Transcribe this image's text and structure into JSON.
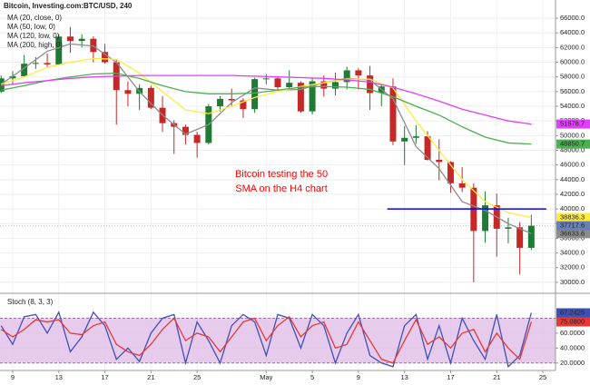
{
  "chart_data": [
    {
      "type": "candlestick",
      "title": "Bitcoin, Investing.com:BTC/USD, 240",
      "annotation": [
        "Bitcoin testing the 50",
        "SMA on the H4 chart"
      ],
      "annotation_color": "#ff0000",
      "x": [
        -1,
        0,
        1,
        2,
        3,
        4,
        5,
        6,
        7,
        8,
        9,
        10,
        11,
        12,
        13,
        14,
        15,
        16,
        17,
        18,
        19,
        20,
        21,
        22,
        23,
        24,
        25,
        26,
        27,
        28,
        29,
        30,
        31,
        32,
        33,
        34,
        35,
        36,
        37,
        38,
        39,
        40,
        41,
        42,
        43,
        44,
        45
      ],
      "open": [
        56000,
        57800,
        58100,
        59800,
        59900,
        59700,
        63500,
        62900,
        63200,
        61400,
        60000,
        56200,
        55700,
        56500,
        53800,
        51700,
        51200,
        50100,
        49000,
        54000,
        55000,
        54800,
        53600,
        57700,
        57800,
        56600,
        57200,
        53300,
        57400,
        56400,
        57300,
        58900,
        58200,
        55800,
        56700,
        49200,
        49700,
        49900,
        46700,
        46400,
        43500,
        42900,
        37000,
        40500,
        37300,
        37500,
        34700
      ],
      "high": [
        58200,
        58800,
        61000,
        60700,
        61200,
        63800,
        64800,
        63800,
        63500,
        62500,
        60400,
        57400,
        57000,
        56800,
        55400,
        52100,
        51500,
        50500,
        54300,
        55400,
        56400,
        55100,
        57900,
        58400,
        57900,
        58900,
        57400,
        57800,
        58200,
        58600,
        59400,
        59200,
        59500,
        57000,
        57800,
        51300,
        51400,
        50600,
        49500,
        46500,
        45700,
        43500,
        42400,
        42100,
        38800,
        38200,
        39200
      ],
      "low": [
        55800,
        56900,
        57900,
        59100,
        59300,
        59700,
        61300,
        62000,
        60000,
        59800,
        51500,
        54000,
        53500,
        53600,
        50500,
        47500,
        48800,
        47000,
        48800,
        53300,
        53900,
        52400,
        53100,
        57000,
        56100,
        56500,
        53100,
        52900,
        55300,
        55500,
        56300,
        56300,
        53500,
        54000,
        48700,
        46000,
        48900,
        46600,
        43900,
        42200,
        42300,
        30000,
        35400,
        33500,
        35300,
        31100,
        34400
      ],
      "close": [
        57800,
        58100,
        59800,
        59900,
        59700,
        63500,
        62900,
        63200,
        61400,
        60000,
        56200,
        55700,
        56500,
        53800,
        51700,
        51200,
        50100,
        49000,
        54000,
        55000,
        54800,
        53600,
        57700,
        57800,
        56600,
        57200,
        53300,
        57400,
        56400,
        57300,
        58900,
        58200,
        55800,
        56700,
        49200,
        49700,
        49900,
        46700,
        46400,
        43500,
        42900,
        37000,
        40500,
        37300,
        37500,
        34700,
        37717.6
      ],
      "up_color": "#1e7b34",
      "down_color": "#c62828",
      "price_color": "#6a7fb5",
      "series": [
        {
          "name": "MA (20, close, 0)",
          "color": "#8c8c8c",
          "x": [
            -1,
            1,
            3,
            5,
            7,
            9,
            11,
            13,
            15,
            17,
            19,
            21,
            23,
            25,
            27,
            29,
            31,
            33,
            35,
            37,
            39,
            41,
            43,
            45
          ],
          "values": [
            57000,
            59200,
            61500,
            62500,
            62200,
            60000,
            56000,
            52800,
            50200,
            51500,
            54500,
            56500,
            56200,
            56300,
            57200,
            57800,
            57600,
            55000,
            48500,
            45500,
            41000,
            39800,
            38000,
            36633.6
          ]
        },
        {
          "name": "MA (50, low, 0)",
          "color": "#ffeb3b",
          "x": [
            -1,
            1,
            3,
            5,
            7,
            9,
            11,
            13,
            15,
            17,
            19,
            21,
            23,
            25,
            27,
            29,
            31,
            33,
            35,
            37,
            39,
            41,
            43,
            45
          ],
          "values": [
            57000,
            58000,
            59300,
            60000,
            60500,
            60400,
            58500,
            56000,
            53500,
            53000,
            54000,
            55200,
            56000,
            56700,
            57200,
            57700,
            57700,
            56500,
            52000,
            48000,
            44000,
            41000,
            39500,
            38836.3
          ]
        },
        {
          "name": "MA (120, low, 0)",
          "color": "#4caf50",
          "x": [
            -1,
            1,
            3,
            5,
            7,
            9,
            11,
            13,
            15,
            17,
            19,
            21,
            23,
            25,
            27,
            29,
            31,
            33,
            35,
            37,
            39,
            41,
            43,
            45
          ],
          "values": [
            56200,
            56800,
            57500,
            58000,
            58400,
            58500,
            57800,
            56800,
            56000,
            55700,
            55700,
            55800,
            56200,
            56600,
            56700,
            56600,
            56300,
            55300,
            54000,
            52800,
            51200,
            49800,
            49000,
            48850.7
          ]
        },
        {
          "name": "MA (200, high, 0)",
          "color": "#e040fb",
          "x": [
            -1,
            1,
            3,
            5,
            7,
            9,
            11,
            13,
            15,
            17,
            19,
            21,
            23,
            25,
            27,
            29,
            31,
            33,
            35,
            37,
            39,
            41,
            43,
            45
          ],
          "values": [
            56800,
            57200,
            57500,
            57800,
            58000,
            58100,
            58200,
            58200,
            58200,
            58200,
            58200,
            58100,
            58000,
            57900,
            57800,
            57600,
            57300,
            56600,
            55700,
            54700,
            53600,
            52800,
            52000,
            51578.7
          ]
        }
      ],
      "hline": {
        "value": 40000,
        "xlim": [
          32.5,
          46.3
        ],
        "color": "#0000ff"
      },
      "xlim": [
        -1.1,
        47.1
      ],
      "ylim": [
        29000,
        67000
      ],
      "yticks": [
        {
          "value": 30000,
          "label": "30000.0"
        },
        {
          "value": 32000,
          "label": "32000.0"
        },
        {
          "value": 34000,
          "label": "34000.0"
        },
        {
          "value": 36000,
          "label": "36000.0"
        },
        {
          "value": 38000,
          "label": "38000.0"
        },
        {
          "value": 40000,
          "label": "40000.0"
        },
        {
          "value": 42000,
          "label": "42000.0"
        },
        {
          "value": 44000,
          "label": "44000.0"
        },
        {
          "value": 46000,
          "label": "46000.0"
        },
        {
          "value": 48000,
          "label": "48000.0"
        },
        {
          "value": 50000,
          "label": "50000.0"
        },
        {
          "value": 52000,
          "label": "52000.0"
        },
        {
          "value": 54000,
          "label": "54000.0"
        },
        {
          "value": 56000,
          "label": "56000.0"
        },
        {
          "value": 58000,
          "label": "58000.0"
        },
        {
          "value": 60000,
          "label": "60000.0"
        },
        {
          "value": 62000,
          "label": "62000.0"
        },
        {
          "value": 64000,
          "label": "64000.0"
        },
        {
          "value": 66000,
          "label": "66000.0"
        }
      ],
      "grid": true
    },
    {
      "type": "line",
      "title": "Stoch (8, 3, 3)",
      "x": [
        -1,
        0,
        1,
        2,
        3,
        4,
        5,
        6,
        7,
        8,
        9,
        10,
        11,
        12,
        13,
        14,
        15,
        16,
        17,
        18,
        19,
        20,
        21,
        22,
        23,
        24,
        25,
        26,
        27,
        28,
        29,
        30,
        31,
        32,
        33,
        34,
        35,
        36,
        37,
        38,
        39,
        40,
        41,
        42,
        43,
        44,
        45
      ],
      "series": [
        {
          "color": "#3f51b5",
          "values": [
            70,
            45,
            82,
            85,
            60,
            88,
            35,
            55,
            88,
            70,
            25,
            40,
            22,
            60,
            80,
            85,
            20,
            75,
            50,
            20,
            70,
            85,
            75,
            30,
            85,
            80,
            40,
            85,
            70,
            20,
            60,
            85,
            30,
            20,
            15,
            70,
            85,
            25,
            70,
            20,
            80,
            50,
            25,
            85,
            15,
            30,
            87.2425
          ]
        },
        {
          "color": "#e53935",
          "values": [
            65,
            55,
            65,
            78,
            75,
            78,
            60,
            58,
            70,
            75,
            45,
            35,
            30,
            45,
            65,
            80,
            50,
            60,
            55,
            35,
            55,
            75,
            80,
            50,
            70,
            82,
            55,
            70,
            75,
            40,
            45,
            75,
            50,
            25,
            20,
            50,
            78,
            45,
            55,
            40,
            60,
            65,
            35,
            60,
            40,
            25,
            75.08
          ],
          "value_labels": [
            null,
            null,
            null,
            null,
            null,
            null,
            null,
            null,
            null,
            null,
            null,
            null,
            null,
            null,
            null,
            null,
            null,
            null,
            null,
            null,
            null,
            null,
            null,
            null,
            null,
            null,
            null,
            null,
            null,
            null,
            null,
            null,
            null,
            null,
            null,
            null,
            null,
            null,
            null,
            null,
            null,
            null,
            null,
            null,
            null,
            null,
            "75.0800"
          ]
        }
      ],
      "band": [
        20,
        80
      ],
      "band_color": "#e1bee7",
      "xlim": [
        -1.1,
        47.1
      ],
      "ylim": [
        10,
        100
      ],
      "yticks": [
        {
          "value": 20,
          "label": "20.0000"
        },
        {
          "value": 40,
          "label": "40.0000"
        },
        {
          "value": 60,
          "label": "60.0000"
        },
        {
          "value": 80,
          "label": "80.0000"
        }
      ],
      "xticks": [
        {
          "value": 0,
          "label": "9"
        },
        {
          "value": 4,
          "label": "13"
        },
        {
          "value": 8,
          "label": "17"
        },
        {
          "value": 12,
          "label": "21"
        },
        {
          "value": 16,
          "label": "25"
        },
        {
          "value": 22,
          "label": "May"
        },
        {
          "value": 26,
          "label": "5"
        },
        {
          "value": 30,
          "label": "9"
        },
        {
          "value": 34,
          "label": "13"
        },
        {
          "value": 38,
          "label": "17"
        },
        {
          "value": 42,
          "label": "21"
        },
        {
          "value": 46,
          "label": "25"
        }
      ],
      "grid": true
    }
  ]
}
